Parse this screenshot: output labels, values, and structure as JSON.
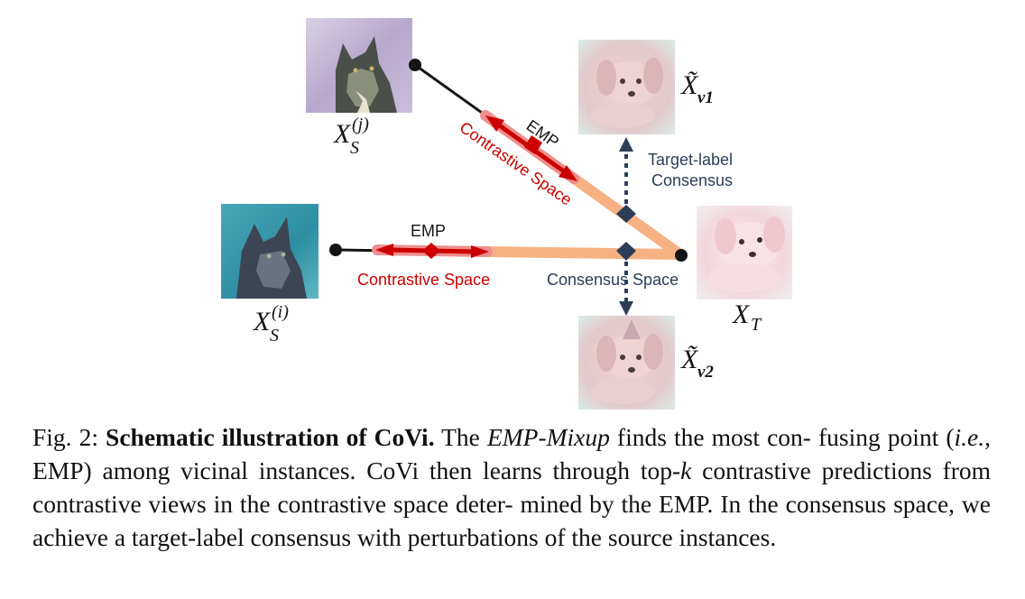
{
  "figure": {
    "labels": {
      "source_j_base": "X",
      "source_j_sub": "S",
      "source_j_sup": "(j)",
      "source_i_base": "X",
      "source_i_sub": "S",
      "source_i_sup": "(i)",
      "target_base": "X",
      "target_sub": "T",
      "view1_base": "X̃",
      "view1_sub": "v1",
      "view2_base": "X̃",
      "view2_sub": "v2"
    },
    "emp_upper": "EMP",
    "contrastive_upper": "Contrastive Space",
    "emp_lower": "EMP",
    "contrastive_lower": "Contrastive Space",
    "consensus_space": "Consensus Space",
    "target_label_line1": "Target-label",
    "target_label_line2": "Consensus",
    "colors": {
      "emp_red": "#cc0000",
      "band_orange": "#f6b283",
      "band_pink": "#ee8e8e",
      "node_navy": "#2c3e57",
      "line_black": "#141414"
    }
  },
  "caption": {
    "fig_label": "Fig. 2:",
    "title": "Schematic illustration of CoVi.",
    "t1": "The",
    "t2": "EMP-Mixup",
    "t3": "finds the most con-",
    "t4": "fusing point (",
    "t5": "i.e.",
    "t6": ", EMP) among vicinal instances. CoVi then learns through top-",
    "t7": "k",
    "line3": "contrastive predictions from contrastive views in the contrastive space deter-",
    "line4": "mined by the EMP. In the consensus space, we achieve a target-label consensus",
    "line5": "with perturbations of the source instances."
  }
}
